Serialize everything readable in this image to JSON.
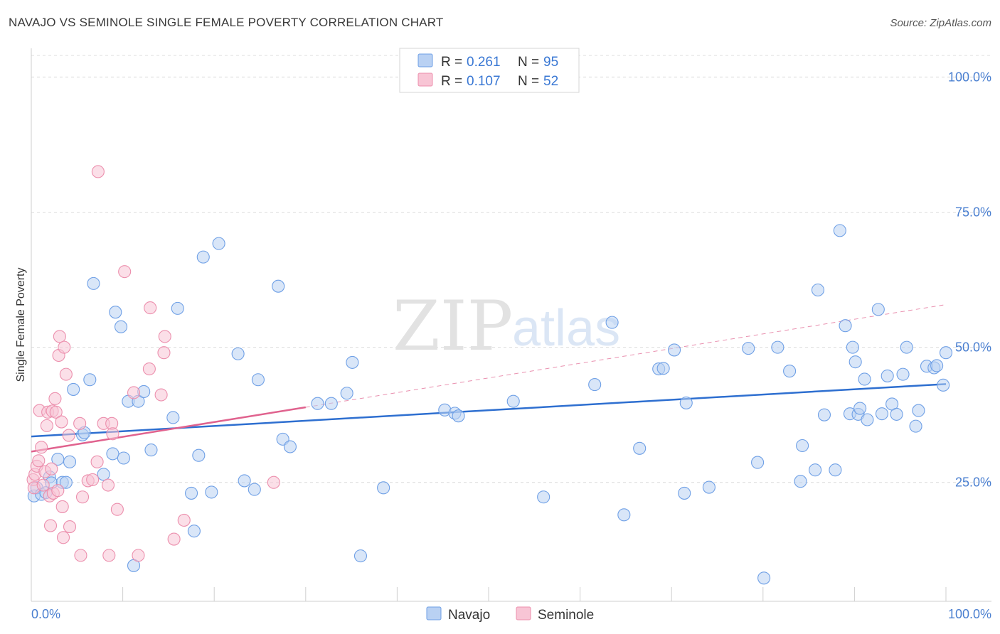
{
  "header": {
    "title": "NAVAJO VS SEMINOLE SINGLE FEMALE POVERTY CORRELATION CHART",
    "source": "Source: ZipAtlas.com"
  },
  "watermark": {
    "zip": "ZIP",
    "atlas": "atlas"
  },
  "chart_data": {
    "type": "scatter",
    "title": "NAVAJO VS SEMINOLE SINGLE FEMALE POVERTY CORRELATION CHART",
    "xlabel": "",
    "ylabel": "Single Female Poverty",
    "xlim": [
      0,
      100
    ],
    "ylim": [
      3,
      104
    ],
    "x_tick_labels": {
      "left": "0.0%",
      "right": "100.0%"
    },
    "y_ticks": [
      {
        "value": 25,
        "label": "25.0%"
      },
      {
        "value": 50,
        "label": "50.0%"
      },
      {
        "value": 75,
        "label": "75.0%"
      },
      {
        "value": 100,
        "label": "100.0%"
      }
    ],
    "grid": true,
    "legend_position": "top-center",
    "legend": [
      {
        "name": "Navajo",
        "r_label": "R = ",
        "r_value": "0.261",
        "n_label": "N = ",
        "n_value": "95",
        "color": "#6fa0e6",
        "fill": "#b9d1f3"
      },
      {
        "name": "Seminole",
        "r_label": "R = ",
        "r_value": "0.107",
        "n_label": "N = ",
        "n_value": "52",
        "color": "#ec8fad",
        "fill": "#f8c5d5"
      }
    ],
    "series": [
      {
        "name": "Navajo",
        "color": "#6fa0e6",
        "trend": {
          "x0": 0,
          "y0": 33.5,
          "x1": 100,
          "y1": 43.2,
          "color": "#2e6fd0"
        },
        "points": [
          [
            0.3,
            22.5
          ],
          [
            0.6,
            24.0
          ],
          [
            1.1,
            22.8
          ],
          [
            1.6,
            23.1
          ],
          [
            2.0,
            26.0
          ],
          [
            2.2,
            24.9
          ],
          [
            2.9,
            29.3
          ],
          [
            3.4,
            25.0
          ],
          [
            3.8,
            25.0
          ],
          [
            4.2,
            28.8
          ],
          [
            4.6,
            42.2
          ],
          [
            5.6,
            33.8
          ],
          [
            5.8,
            34.2
          ],
          [
            6.4,
            44.0
          ],
          [
            6.8,
            61.8
          ],
          [
            7.9,
            26.5
          ],
          [
            8.9,
            30.3
          ],
          [
            9.2,
            56.5
          ],
          [
            9.8,
            53.8
          ],
          [
            10.1,
            29.5
          ],
          [
            10.6,
            40.0
          ],
          [
            11.2,
            9.6
          ],
          [
            11.7,
            40.0
          ],
          [
            12.3,
            41.8
          ],
          [
            13.1,
            31.0
          ],
          [
            15.5,
            37.0
          ],
          [
            16.0,
            57.2
          ],
          [
            17.5,
            23.0
          ],
          [
            17.8,
            16.0
          ],
          [
            18.3,
            30.0
          ],
          [
            18.8,
            66.7
          ],
          [
            19.7,
            23.2
          ],
          [
            20.5,
            69.2
          ],
          [
            22.6,
            48.8
          ],
          [
            23.3,
            25.3
          ],
          [
            24.4,
            23.7
          ],
          [
            24.8,
            44.0
          ],
          [
            27.0,
            61.3
          ],
          [
            27.5,
            33.0
          ],
          [
            28.3,
            31.6
          ],
          [
            31.3,
            39.6
          ],
          [
            32.8,
            39.6
          ],
          [
            34.5,
            41.5
          ],
          [
            35.1,
            47.2
          ],
          [
            36.0,
            11.4
          ],
          [
            38.5,
            24.0
          ],
          [
            45.2,
            38.4
          ],
          [
            46.3,
            37.8
          ],
          [
            46.7,
            37.3
          ],
          [
            52.7,
            40.0
          ],
          [
            56.0,
            22.3
          ],
          [
            61.6,
            43.1
          ],
          [
            63.5,
            54.6
          ],
          [
            64.8,
            19.0
          ],
          [
            66.5,
            31.3
          ],
          [
            68.6,
            46.0
          ],
          [
            69.1,
            46.1
          ],
          [
            70.3,
            49.5
          ],
          [
            71.4,
            23.0
          ],
          [
            71.6,
            39.7
          ],
          [
            74.1,
            24.1
          ],
          [
            78.4,
            49.8
          ],
          [
            79.4,
            28.7
          ],
          [
            80.1,
            7.3
          ],
          [
            81.6,
            50.0
          ],
          [
            82.9,
            45.6
          ],
          [
            84.1,
            25.2
          ],
          [
            84.3,
            31.8
          ],
          [
            85.7,
            27.3
          ],
          [
            86.0,
            60.6
          ],
          [
            86.7,
            37.5
          ],
          [
            87.9,
            27.3
          ],
          [
            88.4,
            71.6
          ],
          [
            89.0,
            54.0
          ],
          [
            89.5,
            37.7
          ],
          [
            89.8,
            50.0
          ],
          [
            90.1,
            47.3
          ],
          [
            90.4,
            37.6
          ],
          [
            90.6,
            38.7
          ],
          [
            91.1,
            44.1
          ],
          [
            91.4,
            36.6
          ],
          [
            92.6,
            57.0
          ],
          [
            93.0,
            37.7
          ],
          [
            93.6,
            44.7
          ],
          [
            94.1,
            39.5
          ],
          [
            94.6,
            37.6
          ],
          [
            95.3,
            45.0
          ],
          [
            95.7,
            50.0
          ],
          [
            96.7,
            35.4
          ],
          [
            97.0,
            38.3
          ],
          [
            97.9,
            46.5
          ],
          [
            98.7,
            46.2
          ],
          [
            99.0,
            46.6
          ],
          [
            99.7,
            43.0
          ],
          [
            100.0,
            49.0
          ]
        ]
      },
      {
        "name": "Seminole",
        "color": "#ec8fad",
        "trend": {
          "x0": 0,
          "y0": 30.7,
          "x1": 30.0,
          "y1": 38.9,
          "color": "#e0628e",
          "dashed_x1": 100,
          "dashed_y1": 57.9
        },
        "points": [
          [
            0.2,
            25.5
          ],
          [
            0.3,
            24.0
          ],
          [
            0.4,
            26.5
          ],
          [
            0.6,
            28.0
          ],
          [
            0.8,
            29.0
          ],
          [
            0.9,
            38.3
          ],
          [
            1.1,
            31.5
          ],
          [
            1.3,
            24.5
          ],
          [
            1.5,
            27.0
          ],
          [
            1.7,
            35.5
          ],
          [
            1.8,
            38.0
          ],
          [
            2.0,
            22.5
          ],
          [
            2.1,
            17.0
          ],
          [
            2.2,
            27.5
          ],
          [
            2.3,
            38.2
          ],
          [
            2.4,
            23.0
          ],
          [
            2.6,
            40.5
          ],
          [
            2.7,
            38.0
          ],
          [
            2.9,
            23.5
          ],
          [
            3.0,
            48.5
          ],
          [
            3.1,
            52.0
          ],
          [
            3.3,
            36.2
          ],
          [
            3.4,
            20.5
          ],
          [
            3.5,
            14.8
          ],
          [
            3.6,
            50.0
          ],
          [
            3.8,
            45.0
          ],
          [
            4.1,
            33.7
          ],
          [
            4.2,
            16.8
          ],
          [
            5.3,
            35.9
          ],
          [
            5.4,
            11.5
          ],
          [
            5.6,
            22.3
          ],
          [
            6.2,
            25.3
          ],
          [
            6.7,
            25.5
          ],
          [
            7.2,
            28.8
          ],
          [
            7.3,
            82.5
          ],
          [
            7.9,
            35.9
          ],
          [
            8.4,
            24.5
          ],
          [
            8.5,
            11.5
          ],
          [
            8.8,
            35.9
          ],
          [
            8.9,
            34.0
          ],
          [
            9.4,
            20.0
          ],
          [
            10.2,
            64.0
          ],
          [
            11.2,
            41.6
          ],
          [
            11.7,
            11.5
          ],
          [
            12.9,
            46.0
          ],
          [
            13.0,
            57.3
          ],
          [
            14.2,
            41.2
          ],
          [
            14.5,
            49.0
          ],
          [
            14.6,
            52.0
          ],
          [
            15.6,
            14.5
          ],
          [
            16.7,
            18.0
          ],
          [
            26.5,
            25.0
          ]
        ]
      }
    ]
  }
}
